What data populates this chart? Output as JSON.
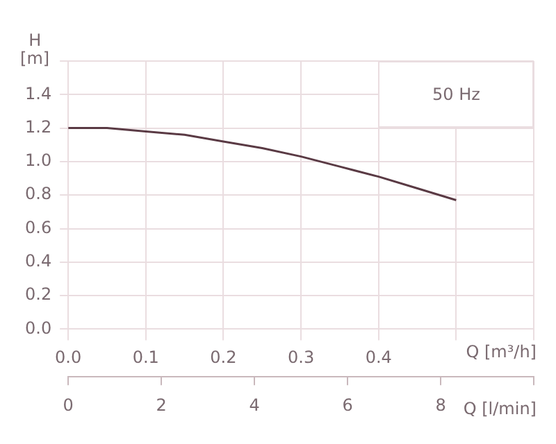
{
  "chart_data": {
    "type": "line",
    "xlabel": "Q [m³/h]",
    "x2label": "Q [l/min]",
    "ylabel": "H [m]",
    "annotations": [
      "50 Hz"
    ],
    "x": [
      0,
      0.05,
      0.1,
      0.15,
      0.2,
      0.25,
      0.3,
      0.35,
      0.4,
      0.45,
      0.5
    ],
    "series": [
      {
        "color": "#5a3a44",
        "values": [
          1.2,
          1.2,
          1.18,
          1.16,
          1.12,
          1.08,
          1.03,
          0.97,
          0.91,
          0.84,
          0.77
        ]
      }
    ],
    "xlim": [
      0,
      0.6
    ],
    "xticks": [
      {
        "value": 0,
        "label": "0.0"
      },
      0.1,
      0.2,
      0.3,
      0.4,
      {
        "value": 0.5,
        "label": null
      },
      {
        "value": 0.6,
        "label": null
      }
    ],
    "x2lim": [
      0,
      10
    ],
    "x2ticks": [
      0,
      2,
      4,
      6,
      8,
      {
        "value": 10,
        "label": null
      }
    ],
    "ylim": [
      0,
      1.6
    ],
    "yticks": [
      {
        "value": 0,
        "label": "0.0"
      },
      0.2,
      0.4,
      0.6,
      0.8,
      {
        "value": 1,
        "label": "1.0"
      },
      1.2,
      1.4,
      {
        "value": 1.6,
        "label": null
      }
    ],
    "grid": true,
    "legend": false,
    "marker": "none",
    "line_style": "solid"
  }
}
